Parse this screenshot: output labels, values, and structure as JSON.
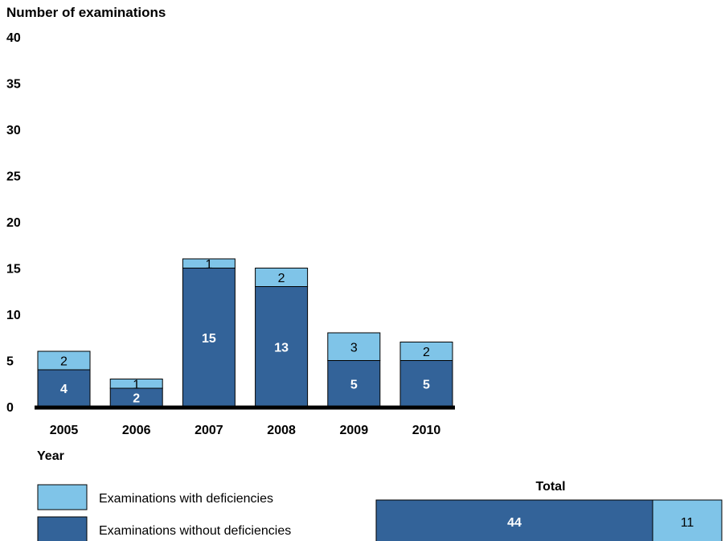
{
  "chart_data": [
    {
      "type": "bar",
      "stacked": true,
      "ylabel": "Number of examinations",
      "xlabel": "Year",
      "ylim": [
        0,
        40
      ],
      "yticks": [
        0,
        5,
        10,
        15,
        20,
        25,
        30,
        35,
        40
      ],
      "categories": [
        "2005",
        "2006",
        "2007",
        "2008",
        "2009",
        "2010"
      ],
      "series": [
        {
          "name": "Examinations without deficiencies",
          "values": [
            4,
            2,
            15,
            13,
            5,
            5
          ],
          "color": "#336399"
        },
        {
          "name": "Examinations with deficiencies",
          "values": [
            2,
            1,
            1,
            2,
            3,
            2
          ],
          "color": "#7fc4e8"
        }
      ],
      "grid": false,
      "legend": "bottom-left"
    },
    {
      "type": "bar",
      "orientation": "horizontal",
      "stacked": true,
      "title": "Total",
      "series": [
        {
          "name": "Examinations without deficiencies",
          "values": [
            44
          ],
          "color": "#336399"
        },
        {
          "name": "Examinations with deficiencies",
          "values": [
            11
          ],
          "color": "#7fc4e8"
        }
      ]
    }
  ]
}
